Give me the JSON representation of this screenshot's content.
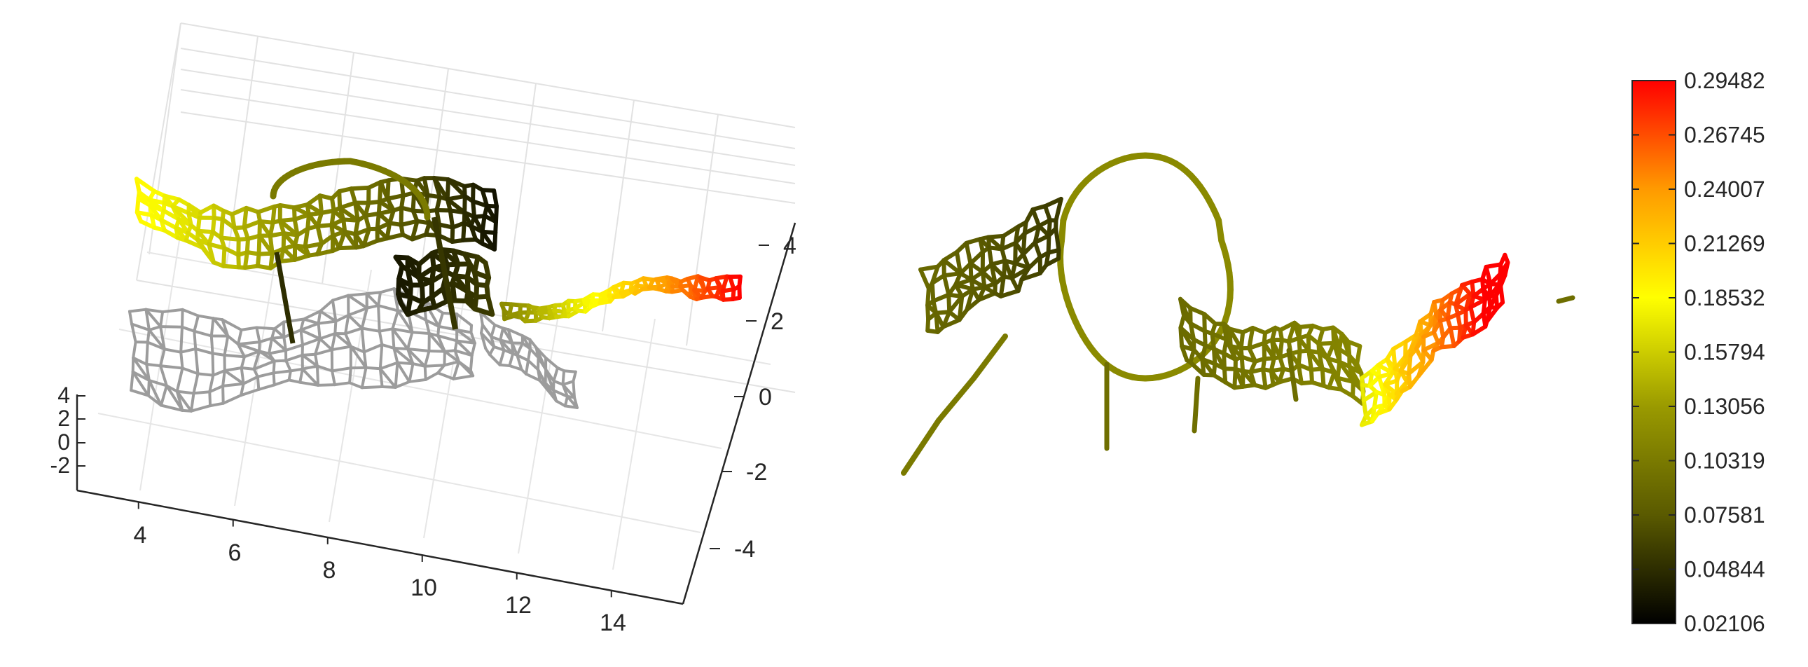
{
  "chart_data": [
    {
      "type": "scatter",
      "subtype": "3d-network-plot",
      "title": "",
      "xlabel": "",
      "ylabel": "",
      "zlabel": "",
      "x_ticks": [
        "4",
        "6",
        "8",
        "10",
        "12",
        "14"
      ],
      "y_ticks": [
        "-4",
        "-2",
        "0",
        "2",
        "4"
      ],
      "z_ticks": [
        "-2",
        "0",
        "2",
        "4"
      ],
      "xlim": [
        3,
        15
      ],
      "ylim": [
        -5,
        5
      ],
      "zlim": [
        -3,
        4
      ],
      "grid": true,
      "colormap": "black-olive-yellow-orange-red",
      "shadow_color": "#999999"
    },
    {
      "type": "scatter",
      "subtype": "2d-network-plot",
      "title": "",
      "axes_visible": false,
      "colorbar": {
        "ticks": [
          "0.29482",
          "0.26745",
          "0.24007",
          "0.21269",
          "0.18532",
          "0.15794",
          "0.13056",
          "0.10319",
          "0.07581",
          "0.04844",
          "0.02106"
        ],
        "range": [
          0.02106,
          0.29482
        ],
        "colors": [
          "#000000",
          "#5a5a00",
          "#b4b400",
          "#ffff00",
          "#ffa000",
          "#ff0000"
        ]
      }
    }
  ]
}
